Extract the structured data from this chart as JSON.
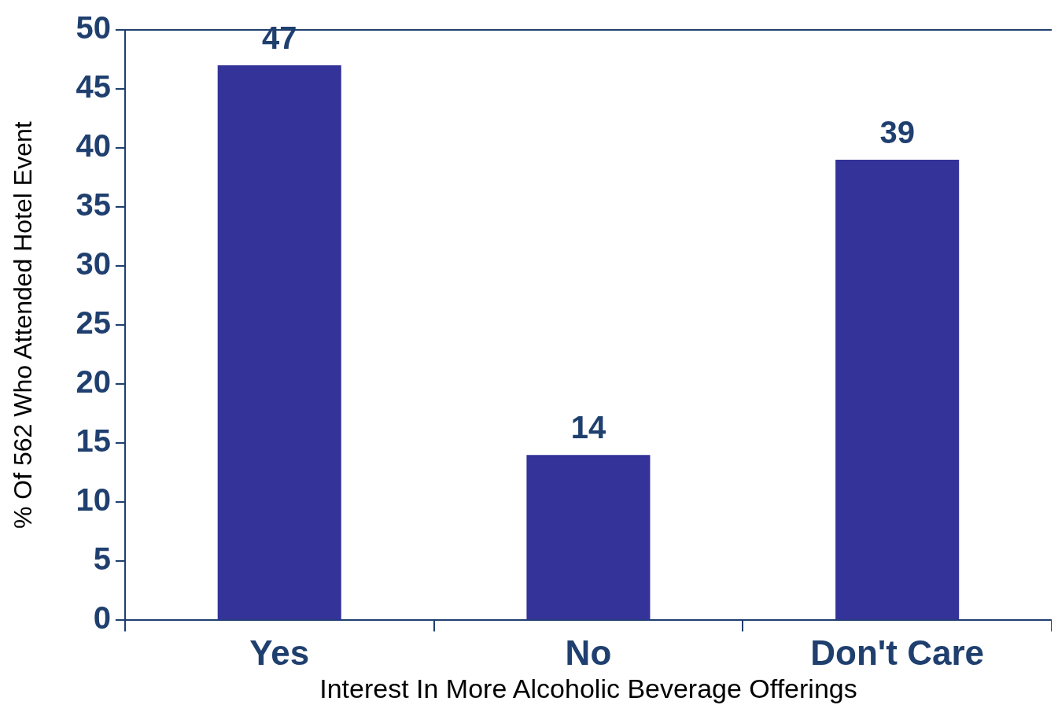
{
  "chart_data": {
    "type": "bar",
    "categories": [
      "Yes",
      "No",
      "Don't Care"
    ],
    "values": [
      47,
      14,
      39
    ],
    "color": "#333399",
    "xlabel": "Interest In More Alcoholic Beverage Offerings",
    "ylabel": "% Of 562 Who Attended Hotel Event",
    "ylim": [
      0,
      50
    ],
    "yticks": [
      0,
      5,
      10,
      15,
      20,
      25,
      30,
      35,
      40,
      45,
      50
    ],
    "grid": false,
    "legend": false,
    "data_labels": true
  }
}
